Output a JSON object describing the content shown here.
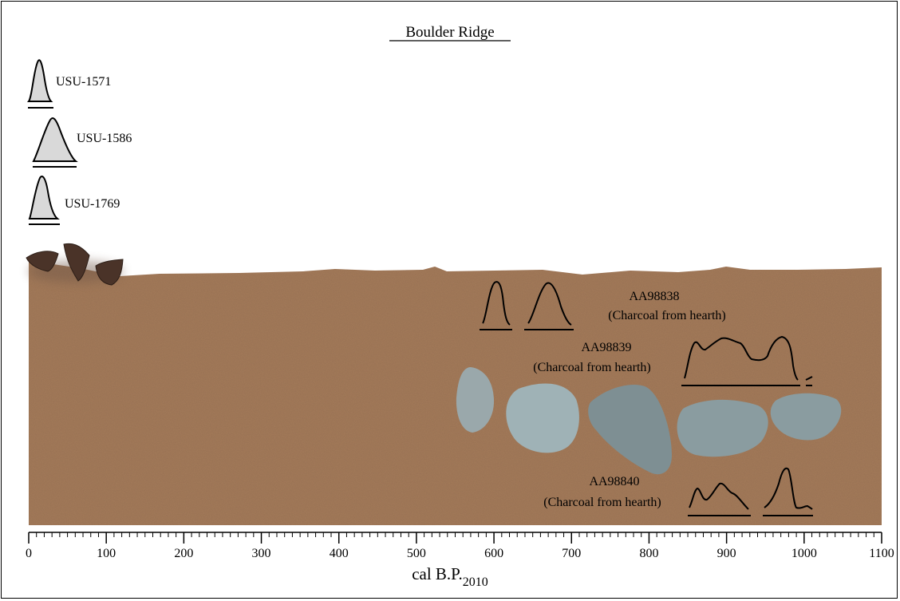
{
  "title": "Boulder Ridge",
  "samples_top": [
    {
      "id": "USU-1571"
    },
    {
      "id": "USU-1586"
    },
    {
      "id": "USU-1769"
    }
  ],
  "samples_strata": [
    {
      "id": "AA98838",
      "material": "(Charcoal from hearth)"
    },
    {
      "id": "AA98839",
      "material": "(Charcoal from hearth)"
    },
    {
      "id": "AA98840",
      "material": "(Charcoal from hearth)"
    }
  ],
  "axis": {
    "label_main": "cal B.P.",
    "label_sub": "2010",
    "min": 0,
    "max": 1100,
    "ticks": [
      "0",
      "100",
      "200",
      "300",
      "400",
      "500",
      "600",
      "700",
      "800",
      "900",
      "1000",
      "1100"
    ]
  },
  "colors": {
    "soil": "#a57b5c",
    "soil_dark": "#8f6a4e",
    "curve_fill": "#d9d9d9",
    "rock_light": "#9fb0b4",
    "rock_dark": "#7f9094",
    "pottery": "#4a3328"
  }
}
